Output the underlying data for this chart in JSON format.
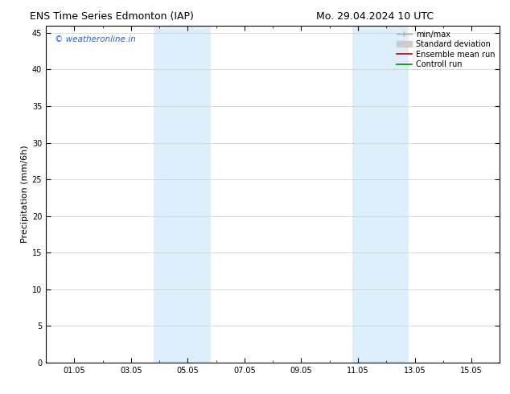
{
  "title_left": "ENS Time Series Edmonton (IAP)",
  "title_right": "Mo. 29.04.2024 10 UTC",
  "ylabel": "Precipitation (mm/6h)",
  "ylim": [
    0,
    46
  ],
  "yticks": [
    0,
    5,
    10,
    15,
    20,
    25,
    30,
    35,
    40,
    45
  ],
  "xtick_labels": [
    "01.05",
    "03.05",
    "05.05",
    "07.05",
    "09.05",
    "11.05",
    "13.05",
    "15.05"
  ],
  "xtick_positions": [
    1,
    3,
    5,
    7,
    9,
    11,
    13,
    15
  ],
  "xlim": [
    0,
    16
  ],
  "shaded_bands": [
    {
      "x_start": 3.8,
      "x_end": 4.8,
      "color": "#dceef9"
    },
    {
      "x_start": 4.8,
      "x_end": 5.8,
      "color": "#dceef9"
    },
    {
      "x_start": 10.8,
      "x_end": 11.8,
      "color": "#dceef9"
    },
    {
      "x_start": 11.8,
      "x_end": 12.8,
      "color": "#dceef9"
    }
  ],
  "watermark_text": "© weatheronline.in",
  "watermark_color": "#3060c0",
  "background_color": "#ffffff",
  "grid_color": "#cccccc",
  "spine_color": "#000000",
  "tick_font_size": 7,
  "label_font_size": 8,
  "title_font_size": 9,
  "legend_fontsize": 7,
  "minmax_color": "#aaaaaa",
  "std_color": "#cccccc",
  "ens_color": "#cc0000",
  "ctrl_color": "#008800"
}
